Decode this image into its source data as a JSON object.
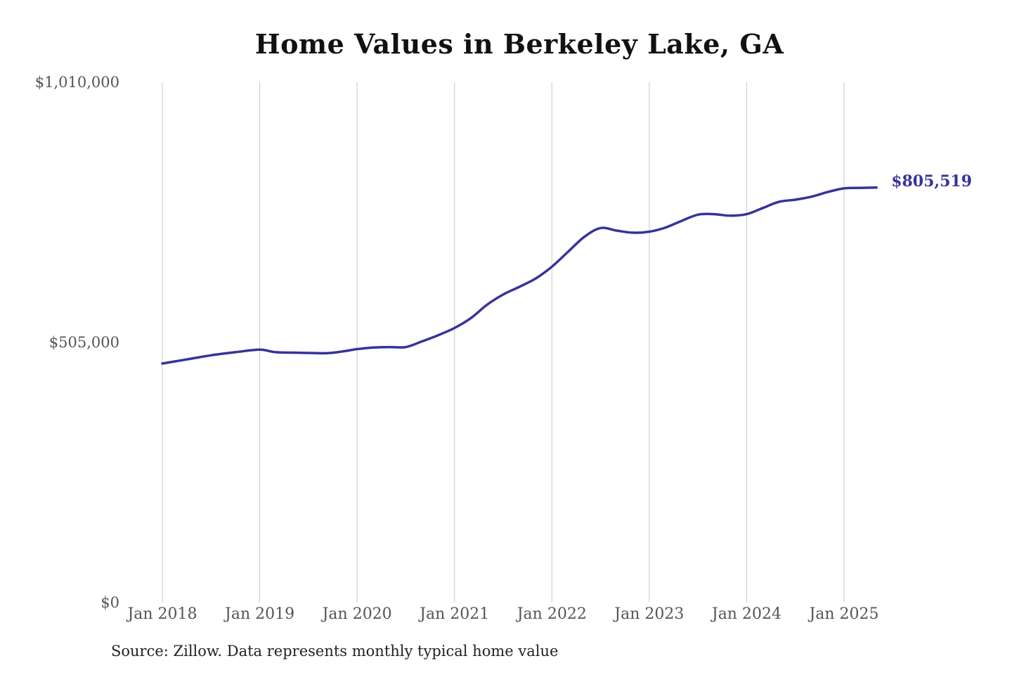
{
  "chart_data": {
    "type": "line",
    "title": "Home Values in Berkeley Lake, GA",
    "source": "Source: Zillow. Data represents monthly typical home value",
    "ylim": [
      0,
      1010000
    ],
    "y_ticks": [
      {
        "value": 0,
        "label": "$0"
      },
      {
        "value": 505000,
        "label": "$505,000"
      },
      {
        "value": 1010000,
        "label": "$1,010,000"
      }
    ],
    "x_ticks": [
      {
        "date": "2018-01",
        "label": "Jan 2018"
      },
      {
        "date": "2019-01",
        "label": "Jan 2019"
      },
      {
        "date": "2020-01",
        "label": "Jan 2020"
      },
      {
        "date": "2021-01",
        "label": "Jan 2021"
      },
      {
        "date": "2022-01",
        "label": "Jan 2022"
      },
      {
        "date": "2023-01",
        "label": "Jan 2023"
      },
      {
        "date": "2024-01",
        "label": "Jan 2024"
      },
      {
        "date": "2025-01",
        "label": "Jan 2025"
      }
    ],
    "grid": {
      "vertical": true,
      "horizontal": false
    },
    "line_color": "#36339a",
    "grid_color": "#c8c8c8",
    "end_label": "$805,519",
    "series": [
      {
        "x": [
          "2018-01",
          "2018-04",
          "2018-07",
          "2018-10",
          "2019-01",
          "2019-03",
          "2019-06",
          "2019-09",
          "2019-11",
          "2020-01",
          "2020-03",
          "2020-05",
          "2020-07",
          "2020-09",
          "2020-11",
          "2021-01",
          "2021-03",
          "2021-05",
          "2021-07",
          "2021-09",
          "2021-11",
          "2022-01",
          "2022-03",
          "2022-05",
          "2022-07",
          "2022-09",
          "2022-11",
          "2023-01",
          "2023-03",
          "2023-05",
          "2023-07",
          "2023-09",
          "2023-11",
          "2024-01",
          "2024-03",
          "2024-05",
          "2024-07",
          "2024-09",
          "2024-11",
          "2025-01",
          "2025-03",
          "2025-05"
        ],
        "values": [
          464000,
          472000,
          480000,
          486000,
          491000,
          486000,
          485000,
          484000,
          487000,
          492000,
          495000,
          496000,
          496000,
          507000,
          519000,
          533000,
          552000,
          578000,
          598000,
          613000,
          629000,
          652000,
          681000,
          710000,
          727000,
          722000,
          718000,
          720000,
          728000,
          741000,
          753000,
          754000,
          751000,
          754000,
          766000,
          778000,
          782000,
          788000,
          797000,
          804000,
          805000,
          805519
        ]
      }
    ]
  }
}
